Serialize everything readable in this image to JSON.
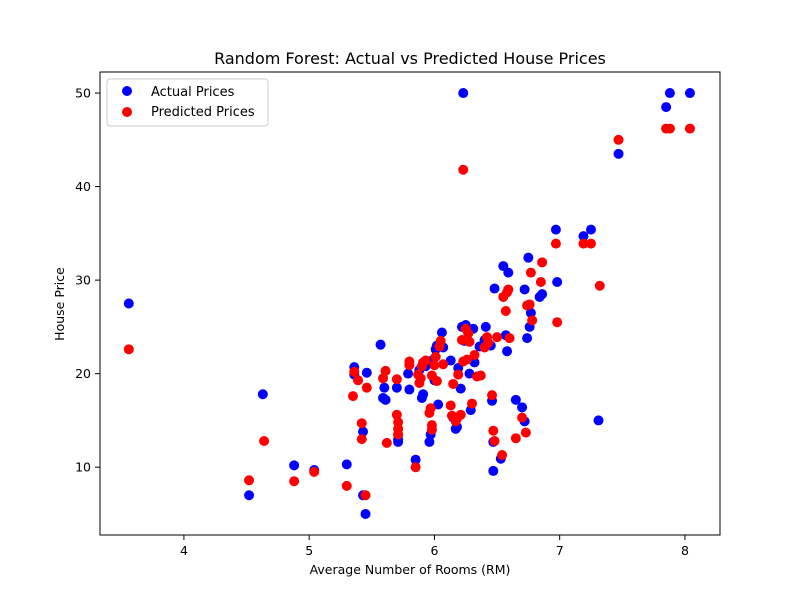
{
  "chart_data": {
    "type": "scatter",
    "title": "Random Forest: Actual vs Predicted House Prices",
    "xlabel": "Average Number of Rooms (RM)",
    "ylabel": "House Price",
    "xlim": [
      3.33,
      8.28
    ],
    "ylim": [
      2.75,
      52.25
    ],
    "xticks": [
      4,
      5,
      6,
      7,
      8
    ],
    "yticks": [
      10,
      20,
      30,
      40,
      50
    ],
    "grid": false,
    "legend_position": "top-left",
    "series": [
      {
        "name": "Actual Prices",
        "color": "#0000ff",
        "points": [
          [
            3.56,
            27.5
          ],
          [
            4.52,
            7.0
          ],
          [
            4.63,
            17.8
          ],
          [
            4.88,
            10.2
          ],
          [
            5.04,
            9.7
          ],
          [
            5.3,
            10.3
          ],
          [
            5.36,
            20.7
          ],
          [
            5.36,
            19.9
          ],
          [
            5.43,
            13.8
          ],
          [
            5.43,
            7.0
          ],
          [
            5.45,
            5.0
          ],
          [
            5.46,
            20.1
          ],
          [
            5.57,
            23.1
          ],
          [
            5.59,
            17.4
          ],
          [
            5.6,
            18.5
          ],
          [
            5.61,
            17.2
          ],
          [
            5.7,
            18.5
          ],
          [
            5.71,
            13.0
          ],
          [
            5.71,
            12.7
          ],
          [
            5.79,
            20.0
          ],
          [
            5.8,
            18.3
          ],
          [
            5.85,
            10.8
          ],
          [
            5.88,
            20.4
          ],
          [
            5.9,
            17.4
          ],
          [
            5.91,
            17.8
          ],
          [
            5.93,
            20.8
          ],
          [
            5.96,
            12.7
          ],
          [
            5.97,
            13.5
          ],
          [
            5.98,
            21.4
          ],
          [
            6.0,
            19.3
          ],
          [
            6.01,
            22.6
          ],
          [
            6.02,
            23.0
          ],
          [
            6.03,
            16.7
          ],
          [
            6.06,
            24.4
          ],
          [
            6.07,
            22.8
          ],
          [
            6.13,
            21.4
          ],
          [
            6.15,
            15.3
          ],
          [
            6.17,
            14.1
          ],
          [
            6.18,
            14.3
          ],
          [
            6.19,
            20.6
          ],
          [
            6.21,
            18.4
          ],
          [
            6.22,
            25.0
          ],
          [
            6.23,
            50.0
          ],
          [
            6.24,
            23.5
          ],
          [
            6.25,
            25.2
          ],
          [
            6.27,
            24.6
          ],
          [
            6.28,
            20.0
          ],
          [
            6.29,
            16.1
          ],
          [
            6.31,
            24.8
          ],
          [
            6.32,
            21.2
          ],
          [
            6.36,
            22.9
          ],
          [
            6.4,
            23.6
          ],
          [
            6.41,
            25.0
          ],
          [
            6.42,
            23.1
          ],
          [
            6.45,
            23.0
          ],
          [
            6.46,
            17.1
          ],
          [
            6.47,
            9.6
          ],
          [
            6.47,
            12.7
          ],
          [
            6.48,
            29.1
          ],
          [
            6.53,
            10.9
          ],
          [
            6.55,
            31.5
          ],
          [
            6.57,
            24.1
          ],
          [
            6.58,
            22.4
          ],
          [
            6.59,
            30.8
          ],
          [
            6.65,
            17.2
          ],
          [
            6.7,
            16.4
          ],
          [
            6.72,
            14.9
          ],
          [
            6.72,
            29.0
          ],
          [
            6.74,
            23.8
          ],
          [
            6.75,
            32.4
          ],
          [
            6.76,
            25.0
          ],
          [
            6.77,
            26.5
          ],
          [
            6.84,
            28.2
          ],
          [
            6.86,
            28.5
          ],
          [
            6.97,
            35.4
          ],
          [
            6.98,
            29.8
          ],
          [
            7.19,
            34.7
          ],
          [
            7.25,
            35.4
          ],
          [
            7.31,
            15.0
          ],
          [
            7.47,
            43.5
          ],
          [
            7.85,
            48.5
          ],
          [
            7.88,
            50.0
          ],
          [
            8.04,
            50.0
          ]
        ]
      },
      {
        "name": "Predicted Prices",
        "color": "#ff0000",
        "points": [
          [
            3.56,
            22.6
          ],
          [
            4.52,
            8.6
          ],
          [
            4.64,
            12.8
          ],
          [
            4.88,
            8.5
          ],
          [
            5.04,
            9.5
          ],
          [
            5.3,
            8.0
          ],
          [
            5.35,
            17.6
          ],
          [
            5.36,
            20.2
          ],
          [
            5.39,
            19.3
          ],
          [
            5.42,
            14.7
          ],
          [
            5.42,
            13.0
          ],
          [
            5.45,
            7.0
          ],
          [
            5.46,
            18.5
          ],
          [
            5.59,
            19.5
          ],
          [
            5.61,
            20.3
          ],
          [
            5.62,
            12.6
          ],
          [
            5.7,
            19.4
          ],
          [
            5.7,
            15.6
          ],
          [
            5.71,
            14.8
          ],
          [
            5.71,
            14.1
          ],
          [
            5.71,
            13.5
          ],
          [
            5.8,
            21.3
          ],
          [
            5.8,
            20.9
          ],
          [
            5.85,
            10.0
          ],
          [
            5.87,
            19.9
          ],
          [
            5.88,
            19.0
          ],
          [
            5.89,
            19.5
          ],
          [
            5.9,
            20.8
          ],
          [
            5.91,
            21.2
          ],
          [
            5.93,
            21.4
          ],
          [
            5.96,
            15.8
          ],
          [
            5.97,
            16.3
          ],
          [
            5.98,
            14.5
          ],
          [
            5.98,
            14.0
          ],
          [
            5.98,
            19.8
          ],
          [
            6.0,
            20.9
          ],
          [
            6.01,
            21.8
          ],
          [
            6.02,
            19.2
          ],
          [
            6.04,
            22.9
          ],
          [
            6.05,
            23.5
          ],
          [
            6.07,
            21.0
          ],
          [
            6.13,
            16.6
          ],
          [
            6.14,
            15.5
          ],
          [
            6.15,
            18.9
          ],
          [
            6.17,
            14.9
          ],
          [
            6.18,
            15.2
          ],
          [
            6.19,
            19.9
          ],
          [
            6.21,
            15.6
          ],
          [
            6.22,
            23.6
          ],
          [
            6.23,
            41.8
          ],
          [
            6.23,
            21.3
          ],
          [
            6.25,
            24.8
          ],
          [
            6.26,
            21.5
          ],
          [
            6.27,
            24.3
          ],
          [
            6.28,
            23.4
          ],
          [
            6.3,
            16.8
          ],
          [
            6.32,
            22.0
          ],
          [
            6.34,
            19.7
          ],
          [
            6.37,
            19.8
          ],
          [
            6.4,
            22.8
          ],
          [
            6.42,
            23.9
          ],
          [
            6.43,
            23.3
          ],
          [
            6.46,
            17.7
          ],
          [
            6.47,
            13.9
          ],
          [
            6.48,
            12.8
          ],
          [
            6.5,
            23.9
          ],
          [
            6.54,
            11.3
          ],
          [
            6.55,
            28.2
          ],
          [
            6.57,
            26.7
          ],
          [
            6.58,
            28.7
          ],
          [
            6.59,
            29.0
          ],
          [
            6.6,
            23.8
          ],
          [
            6.65,
            13.1
          ],
          [
            6.7,
            15.3
          ],
          [
            6.73,
            13.7
          ],
          [
            6.74,
            27.3
          ],
          [
            6.76,
            27.4
          ],
          [
            6.77,
            30.8
          ],
          [
            6.78,
            25.7
          ],
          [
            6.85,
            29.8
          ],
          [
            6.86,
            31.9
          ],
          [
            6.97,
            33.9
          ],
          [
            6.98,
            25.5
          ],
          [
            7.19,
            33.9
          ],
          [
            7.25,
            33.9
          ],
          [
            7.32,
            29.4
          ],
          [
            7.47,
            45.0
          ],
          [
            7.85,
            46.2
          ],
          [
            7.88,
            46.2
          ],
          [
            8.04,
            46.2
          ]
        ]
      }
    ]
  }
}
